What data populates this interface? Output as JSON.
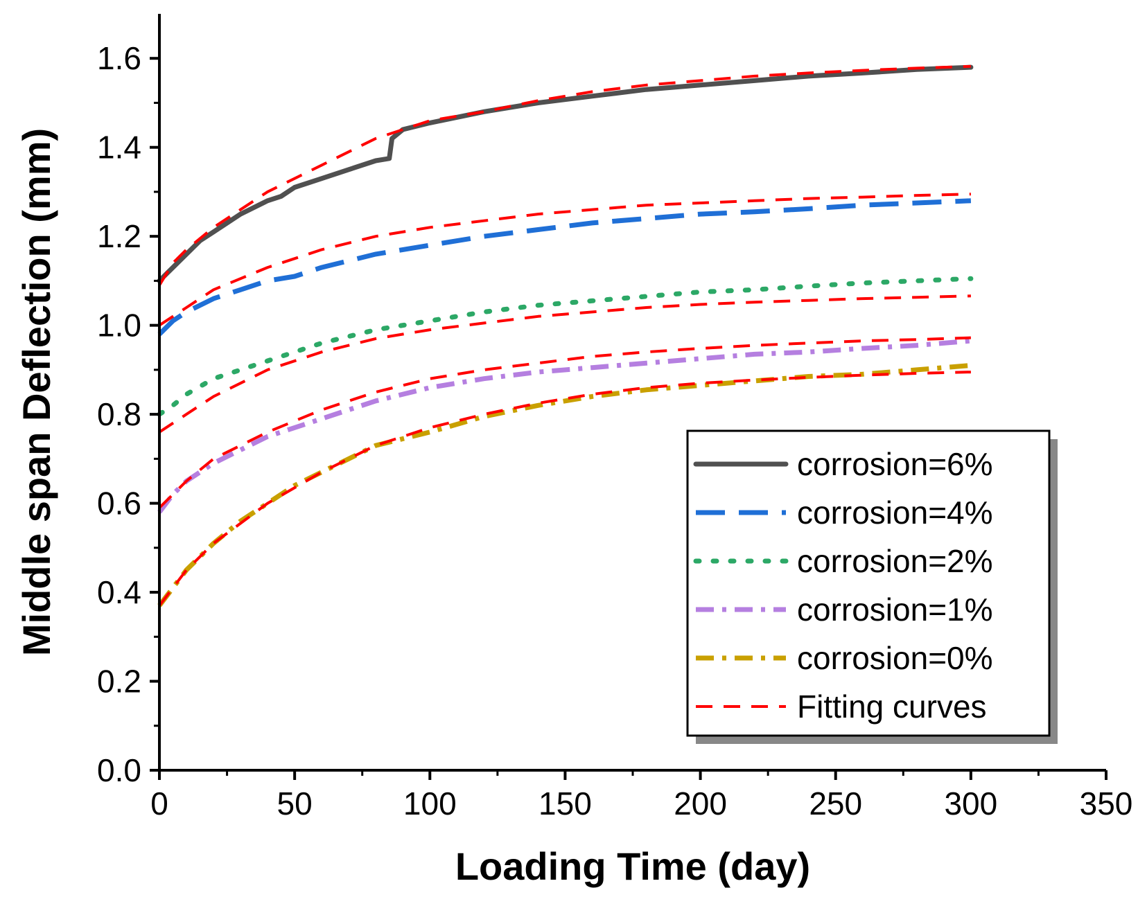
{
  "chart_data": {
    "type": "line",
    "title": "",
    "xlabel": "Loading Time (day)",
    "ylabel": "Middle span Deflection (mm)",
    "xlim": [
      0,
      350
    ],
    "ylim": [
      0,
      1.7
    ],
    "xticks": [
      0,
      50,
      100,
      150,
      200,
      250,
      300,
      350
    ],
    "xtick_labels": [
      "0",
      "50",
      "100",
      "150",
      "200",
      "250",
      "300",
      "350"
    ],
    "yticks": [
      0.0,
      0.2,
      0.4,
      0.6,
      0.8,
      1.0,
      1.2,
      1.4,
      1.6
    ],
    "ytick_labels": [
      "0.0",
      "0.2",
      "0.4",
      "0.6",
      "0.8",
      "1.0",
      "1.2",
      "1.4",
      "1.6"
    ],
    "grid": false,
    "legend_position": "bottom-right",
    "series": [
      {
        "name": "corrosion=6%",
        "color": "#505050",
        "style": "solid",
        "x": [
          0,
          5,
          10,
          15,
          20,
          30,
          40,
          45,
          50,
          60,
          70,
          80,
          85,
          86,
          90,
          100,
          120,
          140,
          160,
          180,
          200,
          220,
          240,
          260,
          280,
          300
        ],
        "y": [
          1.1,
          1.13,
          1.16,
          1.19,
          1.21,
          1.25,
          1.28,
          1.29,
          1.31,
          1.33,
          1.35,
          1.37,
          1.375,
          1.42,
          1.44,
          1.455,
          1.48,
          1.5,
          1.515,
          1.53,
          1.54,
          1.55,
          1.56,
          1.567,
          1.575,
          1.58
        ]
      },
      {
        "name": "corrosion=4%",
        "color": "#1f6fd6",
        "style": "dash",
        "x": [
          0,
          5,
          10,
          20,
          30,
          40,
          50,
          60,
          80,
          100,
          120,
          140,
          160,
          180,
          200,
          220,
          240,
          260,
          280,
          300
        ],
        "y": [
          0.98,
          1.01,
          1.03,
          1.06,
          1.08,
          1.1,
          1.11,
          1.13,
          1.16,
          1.18,
          1.2,
          1.215,
          1.23,
          1.24,
          1.25,
          1.255,
          1.262,
          1.27,
          1.275,
          1.28
        ]
      },
      {
        "name": "corrosion=2%",
        "color": "#2ca866",
        "style": "dot",
        "x": [
          0,
          5,
          10,
          20,
          30,
          40,
          50,
          60,
          80,
          100,
          120,
          140,
          160,
          180,
          200,
          220,
          240,
          260,
          280,
          300
        ],
        "y": [
          0.8,
          0.82,
          0.845,
          0.88,
          0.9,
          0.92,
          0.94,
          0.96,
          0.99,
          1.01,
          1.03,
          1.045,
          1.055,
          1.065,
          1.075,
          1.08,
          1.088,
          1.095,
          1.1,
          1.105
        ]
      },
      {
        "name": "corrosion=1%",
        "color": "#b57fe0",
        "style": "dashdot",
        "x": [
          0,
          5,
          10,
          20,
          30,
          40,
          50,
          60,
          80,
          100,
          120,
          140,
          160,
          180,
          200,
          220,
          240,
          260,
          280,
          300
        ],
        "y": [
          0.58,
          0.62,
          0.65,
          0.69,
          0.72,
          0.75,
          0.77,
          0.79,
          0.83,
          0.86,
          0.88,
          0.895,
          0.905,
          0.915,
          0.925,
          0.935,
          0.94,
          0.948,
          0.955,
          0.965
        ]
      },
      {
        "name": "corrosion=0%",
        "color": "#c9a000",
        "style": "dashdot",
        "x": [
          0,
          5,
          10,
          20,
          30,
          40,
          50,
          60,
          80,
          100,
          120,
          140,
          160,
          180,
          200,
          220,
          240,
          260,
          280,
          300
        ],
        "y": [
          0.37,
          0.41,
          0.45,
          0.51,
          0.56,
          0.6,
          0.64,
          0.67,
          0.73,
          0.76,
          0.795,
          0.82,
          0.84,
          0.855,
          0.865,
          0.875,
          0.885,
          0.89,
          0.9,
          0.91
        ]
      },
      {
        "name": "Fitting curves",
        "color": "#ff0000",
        "style": "fit",
        "curves": [
          {
            "x": [
              0,
              5,
              10,
              20,
              30,
              40,
              50,
              60,
              80,
              100,
              120,
              140,
              160,
              180,
              200,
              220,
              240,
              260,
              280,
              300
            ],
            "y": [
              1.09,
              1.14,
              1.17,
              1.22,
              1.26,
              1.3,
              1.33,
              1.36,
              1.42,
              1.46,
              1.48,
              1.505,
              1.525,
              1.54,
              1.55,
              1.56,
              1.567,
              1.573,
              1.578,
              1.582
            ]
          },
          {
            "x": [
              0,
              10,
              20,
              40,
              60,
              80,
              100,
              120,
              140,
              160,
              180,
              200,
              220,
              240,
              260,
              280,
              300
            ],
            "y": [
              1.0,
              1.04,
              1.08,
              1.13,
              1.17,
              1.2,
              1.22,
              1.235,
              1.25,
              1.26,
              1.27,
              1.275,
              1.28,
              1.285,
              1.288,
              1.292,
              1.295
            ]
          },
          {
            "x": [
              0,
              10,
              20,
              40,
              60,
              80,
              100,
              120,
              140,
              160,
              180,
              200,
              220,
              240,
              260,
              280,
              300
            ],
            "y": [
              0.76,
              0.8,
              0.84,
              0.9,
              0.94,
              0.97,
              0.99,
              1.005,
              1.02,
              1.03,
              1.04,
              1.047,
              1.052,
              1.056,
              1.06,
              1.063,
              1.066
            ]
          },
          {
            "x": [
              0,
              10,
              20,
              40,
              60,
              80,
              100,
              120,
              140,
              160,
              180,
              200,
              220,
              240,
              260,
              280,
              300
            ],
            "y": [
              0.59,
              0.65,
              0.7,
              0.76,
              0.81,
              0.85,
              0.88,
              0.9,
              0.915,
              0.93,
              0.94,
              0.948,
              0.955,
              0.96,
              0.965,
              0.968,
              0.972
            ]
          },
          {
            "x": [
              0,
              10,
              20,
              40,
              60,
              80,
              100,
              120,
              140,
              160,
              180,
              200,
              220,
              240,
              260,
              280,
              300
            ],
            "y": [
              0.37,
              0.45,
              0.51,
              0.6,
              0.67,
              0.73,
              0.77,
              0.8,
              0.825,
              0.845,
              0.86,
              0.87,
              0.877,
              0.883,
              0.888,
              0.892,
              0.895
            ]
          }
        ]
      }
    ]
  }
}
